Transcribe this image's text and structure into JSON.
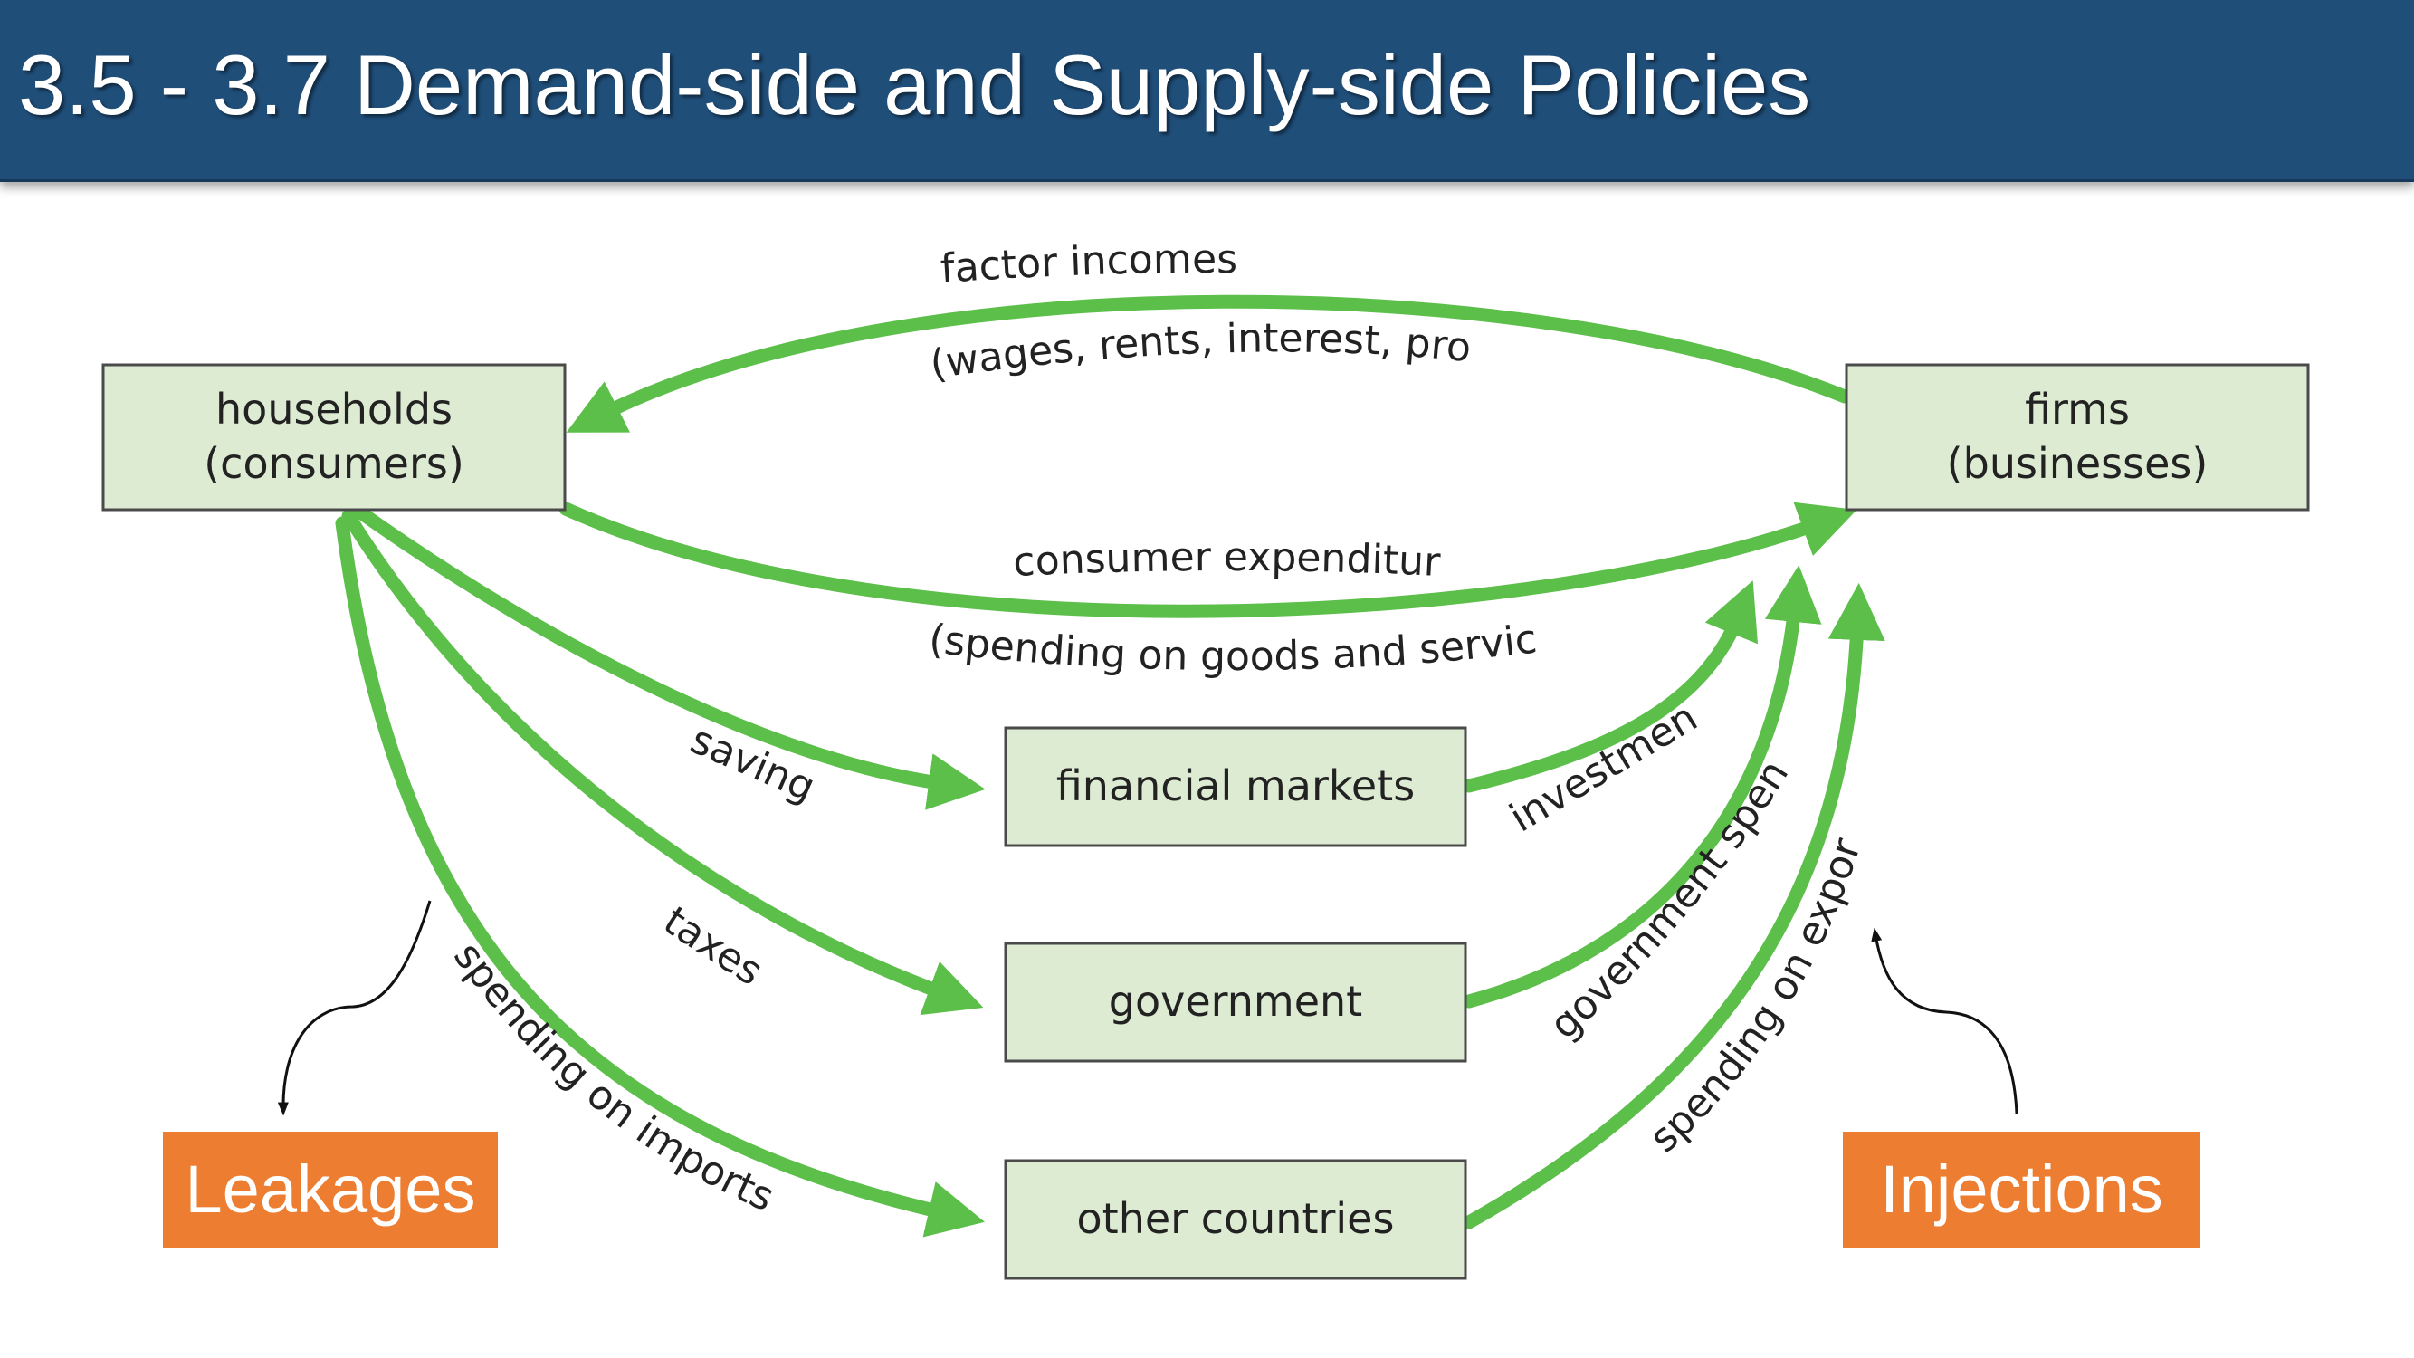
{
  "title": "3.5 - 3.7 Demand-side and Supply-side Policies",
  "nodes": {
    "households": {
      "line1": "households",
      "line2": "(consumers)"
    },
    "firms": {
      "line1": "firms",
      "line2": "(businesses)"
    },
    "financial_markets": "financial markets",
    "government": "government",
    "other_countries": "other countries"
  },
  "flows": {
    "factor_incomes": "factor incomes",
    "factor_incomes_detail": "(wages, rents, interest, profit)",
    "consumer_expenditure": "consumer expenditure",
    "consumer_expenditure_detail": "(spending on goods and services)",
    "saving": "saving",
    "taxes": "taxes",
    "spending_on_imports": "spending on imports",
    "investment": "investment",
    "government_spending": "government spending",
    "spending_on_exports": "spending on exports"
  },
  "callouts": {
    "leakages": "Leakages",
    "injections": "Injections"
  },
  "colors": {
    "title_bar": "#1f4e79",
    "flow_arrow": "#5cbf4a",
    "box_fill": "#dcebd2",
    "callout": "#ed7d31"
  }
}
